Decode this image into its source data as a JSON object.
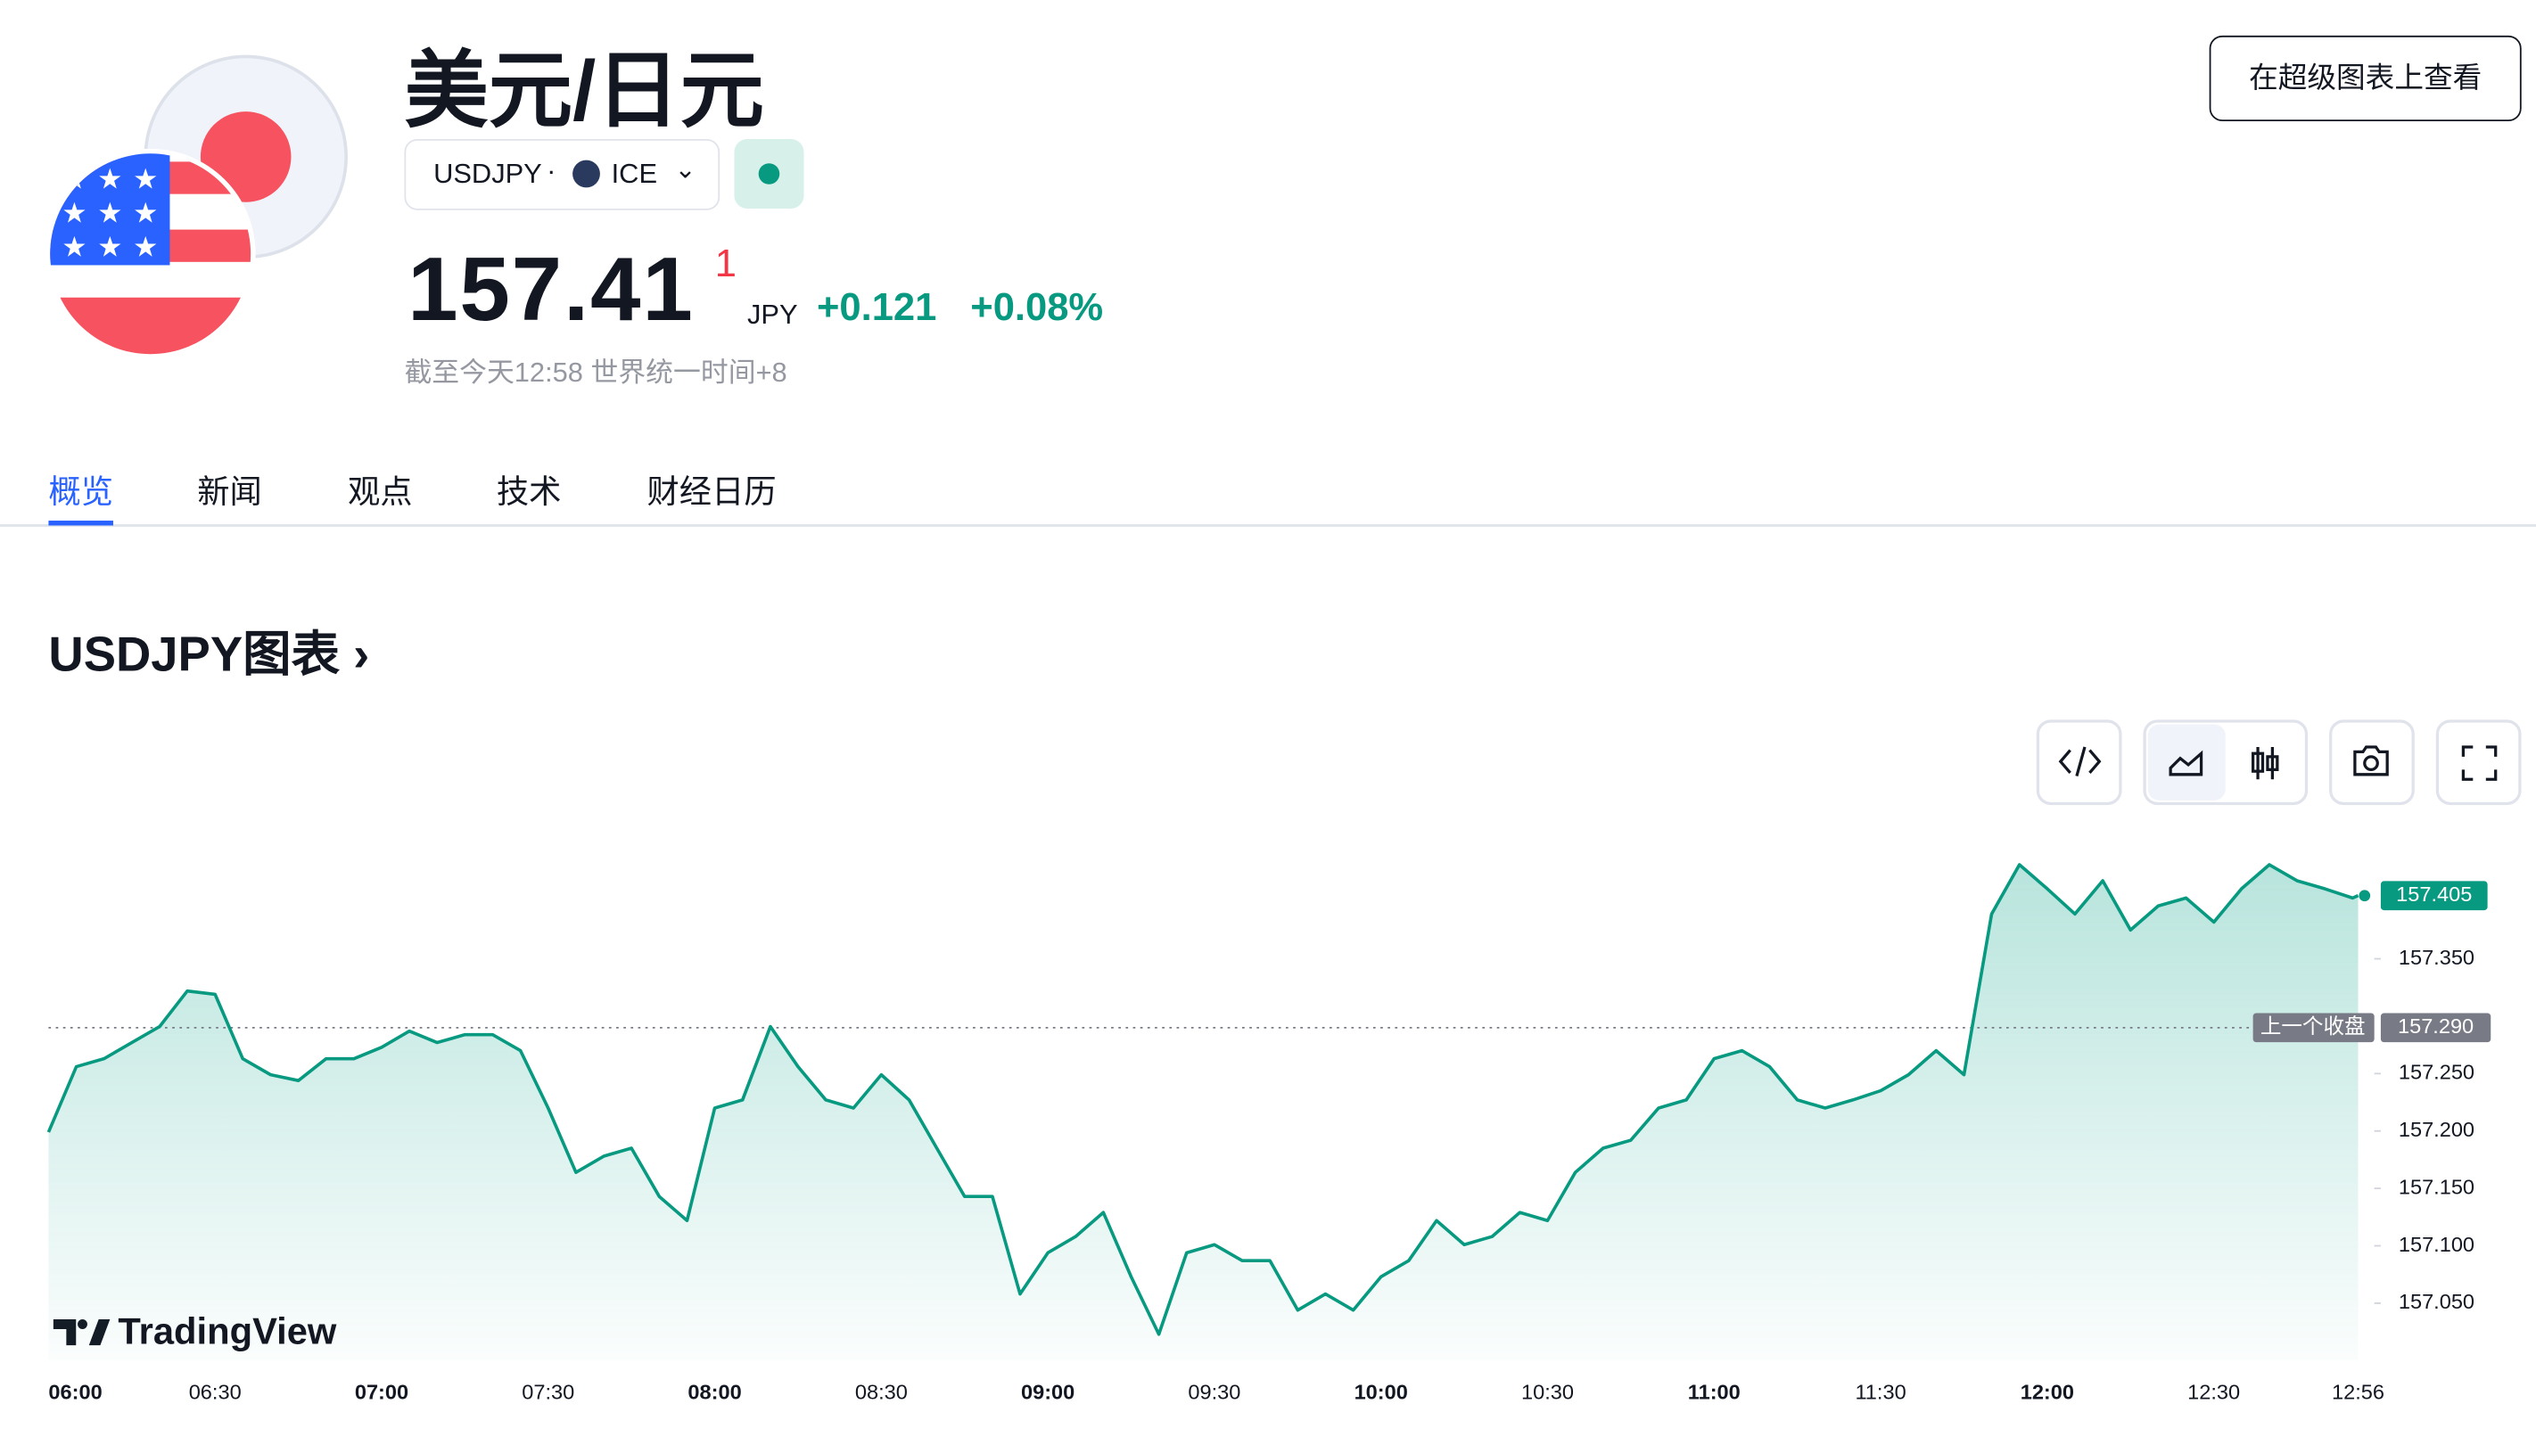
{
  "header": {
    "title": "美元/日元",
    "symbol": "USDJPY",
    "exchange": "ICE",
    "price": "157.41",
    "price_tick": "1",
    "currency": "JPY",
    "change": "+0.121",
    "change_percent": "+0.08%",
    "timestamp": "截至今天12:58 世界统一时间+8",
    "button": "在超级图表上查看"
  },
  "tabs": [
    "概览",
    "新闻",
    "观点",
    "技术",
    "财经日历"
  ],
  "section_title": "USDJPY图表",
  "brand": "TradingView",
  "chart_data": {
    "type": "line",
    "color": "#089981",
    "x": [
      "06:00",
      "06:05",
      "06:10",
      "06:15",
      "06:20",
      "06:25",
      "06:30",
      "06:35",
      "06:40",
      "06:45",
      "06:50",
      "06:55",
      "07:00",
      "07:05",
      "07:10",
      "07:15",
      "07:20",
      "07:25",
      "07:30",
      "07:35",
      "07:40",
      "07:45",
      "07:50",
      "07:55",
      "08:00",
      "08:05",
      "08:10",
      "08:15",
      "08:20",
      "08:25",
      "08:30",
      "08:35",
      "08:40",
      "08:45",
      "08:50",
      "08:55",
      "09:00",
      "09:05",
      "09:10",
      "09:15",
      "09:20",
      "09:25",
      "09:30",
      "09:35",
      "09:40",
      "09:45",
      "09:50",
      "09:55",
      "10:00",
      "10:05",
      "10:10",
      "10:15",
      "10:20",
      "10:25",
      "10:30",
      "10:35",
      "10:40",
      "10:45",
      "10:50",
      "10:55",
      "11:00",
      "11:05",
      "11:10",
      "11:15",
      "11:20",
      "11:25",
      "11:30",
      "11:35",
      "11:40",
      "11:45",
      "11:50",
      "11:55",
      "12:00",
      "12:05",
      "12:10",
      "12:15",
      "12:20",
      "12:25",
      "12:30",
      "12:35",
      "12:40",
      "12:45",
      "12:50",
      "12:55",
      "12:56"
    ],
    "values": [
      157.199,
      157.256,
      157.263,
      157.277,
      157.291,
      157.322,
      157.319,
      157.263,
      157.249,
      157.244,
      157.263,
      157.263,
      157.273,
      157.287,
      157.277,
      157.284,
      157.284,
      157.27,
      157.22,
      157.164,
      157.178,
      157.185,
      157.143,
      157.122,
      157.22,
      157.227,
      157.291,
      157.256,
      157.227,
      157.22,
      157.249,
      157.227,
      157.185,
      157.143,
      157.143,
      157.058,
      157.094,
      157.108,
      157.129,
      157.073,
      157.023,
      157.094,
      157.101,
      157.087,
      157.087,
      157.044,
      157.058,
      157.044,
      157.073,
      157.087,
      157.122,
      157.101,
      157.108,
      157.129,
      157.122,
      157.164,
      157.185,
      157.192,
      157.22,
      157.227,
      157.263,
      157.27,
      157.256,
      157.227,
      157.22,
      157.227,
      157.235,
      157.249,
      157.27,
      157.249,
      157.389,
      157.432,
      157.411,
      157.389,
      157.418,
      157.375,
      157.396,
      157.403,
      157.382,
      157.411,
      157.432,
      157.418,
      157.411,
      157.403,
      157.405
    ],
    "xlim": [
      "06:00",
      "12:56"
    ],
    "xticks": [
      "06:00",
      "06:30",
      "07:00",
      "07:30",
      "08:00",
      "08:30",
      "09:00",
      "09:30",
      "10:00",
      "10:30",
      "11:00",
      "11:30",
      "12:00",
      "12:30",
      "12:56"
    ],
    "ylim": [
      157.0,
      157.48
    ],
    "yticks": [
      {
        "value": 157.05,
        "label": "157.050"
      },
      {
        "value": 157.1,
        "label": "157.100"
      },
      {
        "value": 157.15,
        "label": "157.150"
      },
      {
        "value": 157.2,
        "label": "157.200"
      },
      {
        "value": 157.25,
        "label": "157.250"
      },
      {
        "value": 157.35,
        "label": "157.350"
      }
    ],
    "last_price": {
      "value": 157.405,
      "label": "157.405"
    },
    "previous_close": {
      "name": "上一个收盘",
      "value": 157.29,
      "label": "157.290"
    }
  }
}
